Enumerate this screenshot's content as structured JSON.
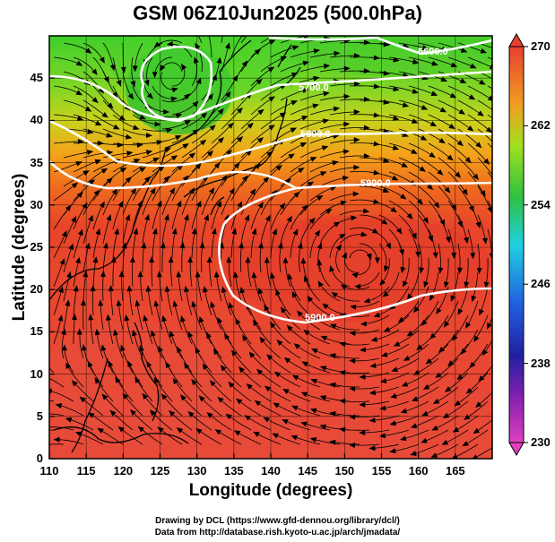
{
  "title": "GSM 06Z10Jun2025 (500.0hPa)",
  "axes": {
    "xlabel": "Longitude (degrees)",
    "ylabel": "Latitude  (degrees)",
    "x_ticks": [
      "110",
      "115",
      "120",
      "125",
      "130",
      "135",
      "140",
      "145",
      "150",
      "155",
      "160",
      "165"
    ],
    "y_ticks": [
      "0",
      "5",
      "10",
      "15",
      "20",
      "25",
      "30",
      "35",
      "40",
      "45"
    ],
    "xlim": [
      110,
      170
    ],
    "ylim": [
      0,
      50
    ]
  },
  "colorbar": {
    "labels": [
      "230",
      "238",
      "246",
      "254",
      "262",
      "270"
    ],
    "range": [
      230,
      270
    ]
  },
  "contours": [
    {
      "label": "5600.0"
    },
    {
      "label": "5700.0"
    },
    {
      "label": "5800.0"
    },
    {
      "label": "5900.0"
    },
    {
      "label": "5900.0"
    }
  ],
  "credits": {
    "line1": "Drawing by DCL (https://www.gfd-dennou.org/library/dcl/)",
    "line2": "Data from http://database.rish.kyoto-u.ac.jp/arch/jmadata/"
  },
  "colors": {
    "warm": "#e84a2a",
    "mid": "#f08a1c",
    "cool": "#6fd42a",
    "cold": "#2bbf2b",
    "contour": "#ffffff"
  }
}
